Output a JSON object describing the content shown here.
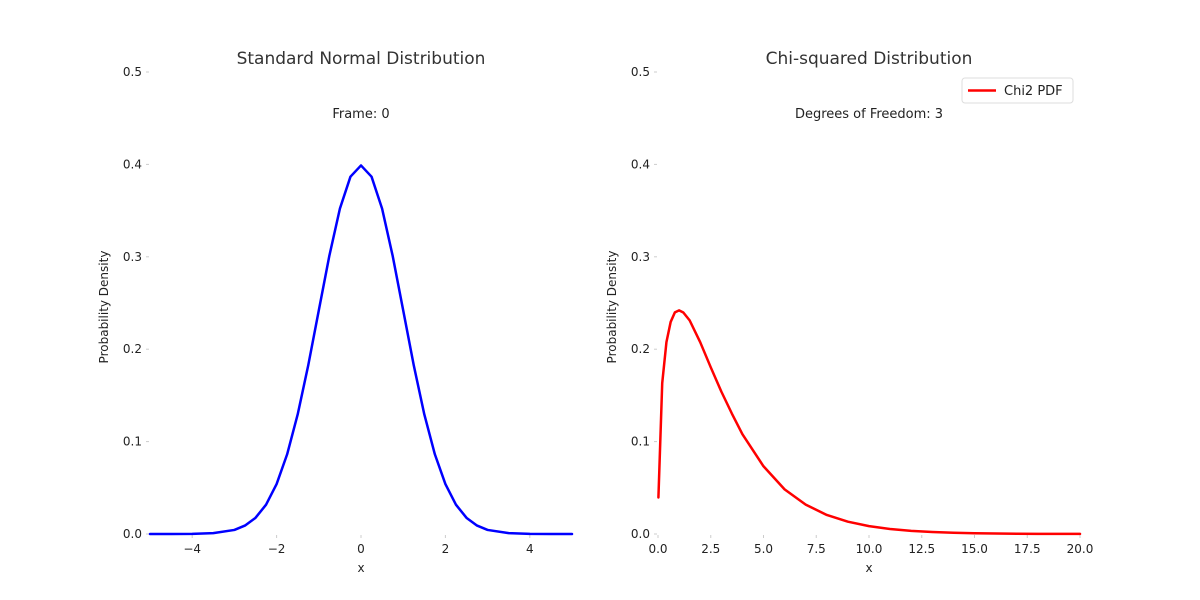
{
  "chart_data": [
    {
      "type": "line",
      "title": "Standard Normal Distribution",
      "subtitle": "Frame: 0",
      "xlabel": "x",
      "ylabel": "Probability Density",
      "xlim": [
        -5,
        5
      ],
      "ylim": [
        0,
        0.5
      ],
      "xticks": [
        -4,
        -2,
        0,
        2,
        4
      ],
      "xtick_labels": [
        "−4",
        "−2",
        "0",
        "2",
        "4"
      ],
      "yticks": [
        0.0,
        0.1,
        0.2,
        0.3,
        0.4,
        0.5
      ],
      "ytick_labels": [
        "0.0",
        "0.1",
        "0.2",
        "0.3",
        "0.4",
        "0.5"
      ],
      "grid": false,
      "series": [
        {
          "color": "#0000ff",
          "x": [
            -5,
            -4.5,
            -4,
            -3.5,
            -3,
            -2.75,
            -2.5,
            -2.25,
            -2,
            -1.75,
            -1.5,
            -1.25,
            -1,
            -0.75,
            -0.5,
            -0.25,
            0,
            0.25,
            0.5,
            0.75,
            1,
            1.25,
            1.5,
            1.75,
            2,
            2.25,
            2.5,
            2.75,
            3,
            3.5,
            4,
            4.5,
            5
          ],
          "y": [
            0.0,
            0.0,
            0.0001,
            0.0009,
            0.0044,
            0.0091,
            0.0175,
            0.0317,
            0.054,
            0.0863,
            0.1295,
            0.1826,
            0.242,
            0.3011,
            0.3521,
            0.3867,
            0.3989,
            0.3867,
            0.3521,
            0.3011,
            0.242,
            0.1826,
            0.1295,
            0.0863,
            0.054,
            0.0317,
            0.0175,
            0.0091,
            0.0044,
            0.0009,
            0.0001,
            0.0,
            0.0
          ]
        }
      ]
    },
    {
      "type": "line",
      "title": "Chi-squared Distribution",
      "subtitle": "Degrees of Freedom: 3",
      "xlabel": "x",
      "ylabel": "Probability Density",
      "xlim": [
        0,
        20
      ],
      "ylim": [
        0,
        0.5
      ],
      "xticks": [
        0,
        2.5,
        5,
        7.5,
        10,
        12.5,
        15,
        17.5,
        20
      ],
      "xtick_labels": [
        "0.0",
        "2.5",
        "5.0",
        "7.5",
        "10.0",
        "12.5",
        "15.0",
        "17.5",
        "20.0"
      ],
      "yticks": [
        0.0,
        0.1,
        0.2,
        0.3,
        0.4,
        0.5
      ],
      "ytick_labels": [
        "0.0",
        "0.1",
        "0.2",
        "0.3",
        "0.4",
        "0.5"
      ],
      "grid": false,
      "legend": {
        "placement": "top-right"
      },
      "series": [
        {
          "name": "Chi2 PDF",
          "color": "#ff0000",
          "x": [
            0.02,
            0.2,
            0.4,
            0.6,
            0.8,
            1.0,
            1.2,
            1.5,
            2,
            2.5,
            3,
            3.5,
            4,
            5,
            6,
            7,
            8,
            9,
            10,
            11,
            12,
            13,
            14,
            15,
            16,
            17,
            18,
            19,
            20
          ],
          "y": [
            0.0395,
            0.1633,
            0.2077,
            0.2295,
            0.2398,
            0.242,
            0.2397,
            0.2312,
            0.2076,
            0.1804,
            0.1542,
            0.1304,
            0.108,
            0.0733,
            0.0483,
            0.0318,
            0.0206,
            0.0133,
            0.0085,
            0.0054,
            0.0034,
            0.0021,
            0.0013,
            0.0008,
            0.0005,
            0.0003,
            0.0002,
            0.0001,
            0.0001
          ]
        }
      ]
    }
  ]
}
